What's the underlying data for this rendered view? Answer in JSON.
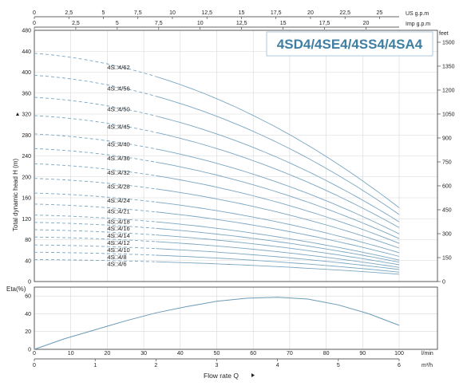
{
  "chart_data": [
    {
      "type": "line",
      "title": "4SD4/4SE4/4SS4/4SA4",
      "ylabel": "Total dynamic head H (m)",
      "ylabel_right": "feet",
      "ylim": [
        0,
        480
      ],
      "yticks": [
        "0",
        "40",
        "80",
        "120",
        "160",
        "200",
        "240",
        "280",
        "320",
        "360",
        "400",
        "440",
        "480"
      ],
      "ylim_right": [
        0,
        1575
      ],
      "yticks_right": [
        "0",
        "150",
        "300",
        "450",
        "600",
        "750",
        "900",
        "1050",
        "1200",
        "1350",
        "1500"
      ],
      "x_top_us": {
        "label": "US g.p.m",
        "ticks": [
          "0",
          "2,5",
          "5",
          "7,5",
          "10",
          "12,5",
          "15",
          "17,5",
          "20",
          "22,5",
          "25"
        ],
        "max": 26.42
      },
      "x_top_imp": {
        "label": "Imp g.p.m",
        "ticks": [
          "0",
          "2,5",
          "5",
          "7,5",
          "10",
          "12,5",
          "15",
          "17,5",
          "20"
        ],
        "max": 22.0
      },
      "x_m3h": {
        "label": "m³/h",
        "ticks": [
          "0",
          "1",
          "2",
          "3",
          "4",
          "5",
          "6"
        ]
      },
      "x_lmin": {
        "label": "l/min",
        "ticks": [
          "0",
          "10",
          "20",
          "30",
          "40",
          "50",
          "60",
          "70",
          "80",
          "90",
          "100"
        ]
      },
      "xlim": [
        0,
        6
      ],
      "grid": true,
      "series": [
        {
          "name": "4S□4/62",
          "shutoff": 436,
          "at_max": 141
        },
        {
          "name": "4S□4/56",
          "shutoff": 394,
          "at_max": 128
        },
        {
          "name": "4S□4/50",
          "shutoff": 352,
          "at_max": 114
        },
        {
          "name": "4S□4/45",
          "shutoff": 317,
          "at_max": 103
        },
        {
          "name": "4S□4/40",
          "shutoff": 282,
          "at_max": 91
        },
        {
          "name": "4S□4/36",
          "shutoff": 254,
          "at_max": 82
        },
        {
          "name": "4S□4/32",
          "shutoff": 225,
          "at_max": 73
        },
        {
          "name": "4S□4/28",
          "shutoff": 197,
          "at_max": 64
        },
        {
          "name": "4S□4/24",
          "shutoff": 169,
          "at_max": 55
        },
        {
          "name": "4S□4/21",
          "shutoff": 148,
          "at_max": 48
        },
        {
          "name": "4S□4/18",
          "shutoff": 127,
          "at_max": 41
        },
        {
          "name": "4S□4/16",
          "shutoff": 113,
          "at_max": 37
        },
        {
          "name": "4S□4/14",
          "shutoff": 99,
          "at_max": 32
        },
        {
          "name": "4S□4/12",
          "shutoff": 85,
          "at_max": 27
        },
        {
          "name": "4S□4/10",
          "shutoff": 70,
          "at_max": 23
        },
        {
          "name": "4S□4/8",
          "shutoff": 56,
          "at_max": 18
        },
        {
          "name": "4S□4/6",
          "shutoff": 42,
          "at_max": 14
        }
      ]
    },
    {
      "type": "line",
      "ylabel": "Eta(%)",
      "ylim": [
        0,
        70
      ],
      "yticks": [
        "0",
        "20",
        "40",
        "60"
      ],
      "xlabel": "Flow rate Q",
      "xlim": [
        0,
        6
      ],
      "grid": true,
      "series": [
        {
          "x": [
            0,
            0.5,
            1,
            1.5,
            2,
            2.5,
            3,
            3.5,
            4,
            4.5,
            5,
            5.5,
            6
          ],
          "y": [
            0,
            12,
            22,
            32,
            41,
            48,
            54,
            57.5,
            58.5,
            56.5,
            50,
            40,
            27
          ]
        }
      ]
    }
  ]
}
